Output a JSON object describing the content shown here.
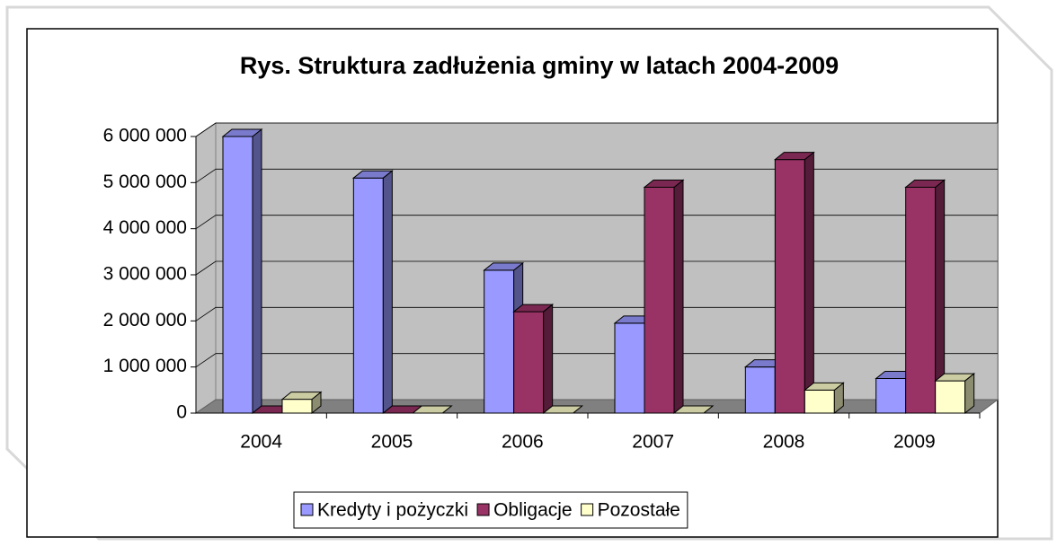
{
  "chart_data": {
    "type": "bar3d",
    "title": "Rys. Struktura zadłużenia gminy w latach 2004-2009",
    "categories": [
      "2004",
      "2005",
      "2006",
      "2007",
      "2008",
      "2009"
    ],
    "series": [
      {
        "name": "Kredyty i pożyczki",
        "color": "#9999ff",
        "values": [
          6000000,
          5100000,
          3100000,
          1950000,
          1000000,
          750000
        ]
      },
      {
        "name": "Obligacje",
        "color": "#993366",
        "values": [
          0,
          0,
          2200000,
          4900000,
          5500000,
          4900000
        ]
      },
      {
        "name": "Pozostałe",
        "color": "#ffffcc",
        "values": [
          300000,
          0,
          0,
          0,
          500000,
          700000
        ]
      }
    ],
    "ylim": [
      0,
      6000000
    ],
    "yticks": [
      0,
      {
        "value": 1000000,
        "label": "1 000 000"
      },
      {
        "value": 2000000,
        "label": "2 000 000"
      },
      {
        "value": 3000000,
        "label": "3 000 000"
      },
      {
        "value": 4000000,
        "label": "4 000 000"
      },
      {
        "value": 5000000,
        "label": "5 000 000"
      },
      {
        "value": 6000000,
        "label": "6 000 000"
      }
    ],
    "grid": true,
    "legend": "bottom"
  }
}
